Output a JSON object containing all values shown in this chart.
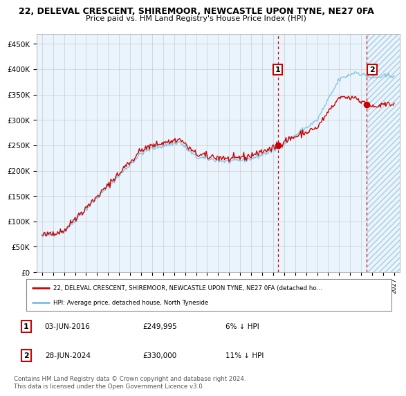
{
  "title_line1": "22, DELEVAL CRESCENT, SHIREMOOR, NEWCASTLE UPON TYNE, NE27 0FA",
  "title_line2": "Price paid vs. HM Land Registry's House Price Index (HPI)",
  "ylabel_ticks": [
    "£0",
    "£50K",
    "£100K",
    "£150K",
    "£200K",
    "£250K",
    "£300K",
    "£350K",
    "£400K",
    "£450K"
  ],
  "ytick_values": [
    0,
    50000,
    100000,
    150000,
    200000,
    250000,
    300000,
    350000,
    400000,
    450000
  ],
  "ylim": [
    0,
    470000
  ],
  "xlim_start": 1994.5,
  "xlim_end": 2027.5,
  "xtick_years": [
    1995,
    1996,
    1997,
    1998,
    1999,
    2000,
    2001,
    2002,
    2003,
    2004,
    2005,
    2006,
    2007,
    2008,
    2009,
    2010,
    2011,
    2012,
    2013,
    2014,
    2015,
    2016,
    2017,
    2018,
    2019,
    2020,
    2021,
    2022,
    2023,
    2024,
    2025,
    2026,
    2027
  ],
  "hpi_color": "#7fbfdf",
  "price_color": "#cc0000",
  "dashed_color": "#cc0000",
  "sale1_date": 2016.42,
  "sale1_price": 249995,
  "sale2_date": 2024.49,
  "sale2_price": 330000,
  "legend_line1": "22, DELEVAL CRESCENT, SHIREMOOR, NEWCASTLE UPON TYNE, NE27 0FA (detached ho…",
  "legend_line2": "HPI: Average price, detached house, North Tyneside",
  "note1_label": "1",
  "note1_date": "03-JUN-2016",
  "note1_price": "£249,995",
  "note1_hpi": "6% ↓ HPI",
  "note2_label": "2",
  "note2_date": "28-JUN-2024",
  "note2_price": "£330,000",
  "note2_hpi": "11% ↓ HPI",
  "footer": "Contains HM Land Registry data © Crown copyright and database right 2024.\nThis data is licensed under the Open Government Licence v3.0.",
  "bg_color": "#ffffff",
  "plot_bg_color": "#eaf4fc",
  "grid_color": "#cccccc"
}
